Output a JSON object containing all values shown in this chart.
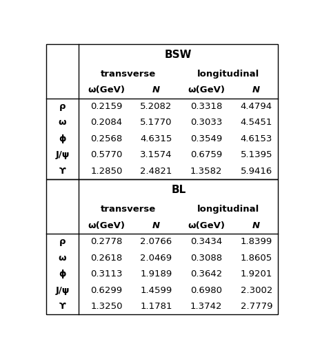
{
  "title_bsw": "BSW",
  "title_bl": "BL",
  "header_transverse": "transverse",
  "header_longitudinal": "longitudinal",
  "col_omega": "ω(GeV)",
  "col_N": "N",
  "row_labels": [
    "ρ",
    "ω",
    "ϕ",
    "J/ψ",
    "ϒ"
  ],
  "bsw_data": [
    [
      "0.2159",
      "5.2082",
      "0.3318",
      "4.4794"
    ],
    [
      "0.2084",
      "5.1770",
      "0.3033",
      "4.5451"
    ],
    [
      "0.2568",
      "4.6315",
      "0.3549",
      "4.6153"
    ],
    [
      "0.5770",
      "3.1574",
      "0.6759",
      "5.1395"
    ],
    [
      "1.2850",
      "2.4821",
      "1.3582",
      "5.9416"
    ]
  ],
  "bl_data": [
    [
      "0.2778",
      "2.0766",
      "0.3434",
      "1.8399"
    ],
    [
      "0.2618",
      "2.0469",
      "0.3088",
      "1.8605"
    ],
    [
      "0.3113",
      "1.9189",
      "0.3642",
      "1.9201"
    ],
    [
      "0.6299",
      "1.4599",
      "0.6980",
      "2.3002"
    ],
    [
      "1.3250",
      "1.1781",
      "1.3742",
      "2.7779"
    ]
  ],
  "fig_width": 4.52,
  "fig_height": 5.15,
  "bg_color": "#ffffff",
  "text_color": "#000000",
  "line_color": "#000000",
  "font_size_data": 9.5,
  "font_size_header": 9.5,
  "font_size_title": 11,
  "lw": 1.0
}
